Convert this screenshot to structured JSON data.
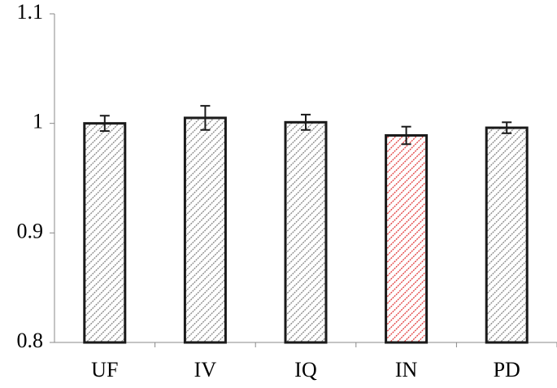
{
  "chart_data": {
    "type": "bar",
    "categories": [
      "UF",
      "IV",
      "IQ",
      "IN",
      "PD"
    ],
    "values": [
      1.0,
      1.005,
      1.001,
      0.989,
      0.996
    ],
    "errors": [
      0.007,
      0.011,
      0.007,
      0.008,
      0.005
    ],
    "colors": [
      "#7f7f7f",
      "#7f7f7f",
      "#7f7f7f",
      "#e03030",
      "#7f7f7f"
    ],
    "ylim": [
      0.8,
      1.1
    ],
    "yticks": [
      0.8,
      0.9,
      1,
      1.1
    ],
    "grid": false
  }
}
